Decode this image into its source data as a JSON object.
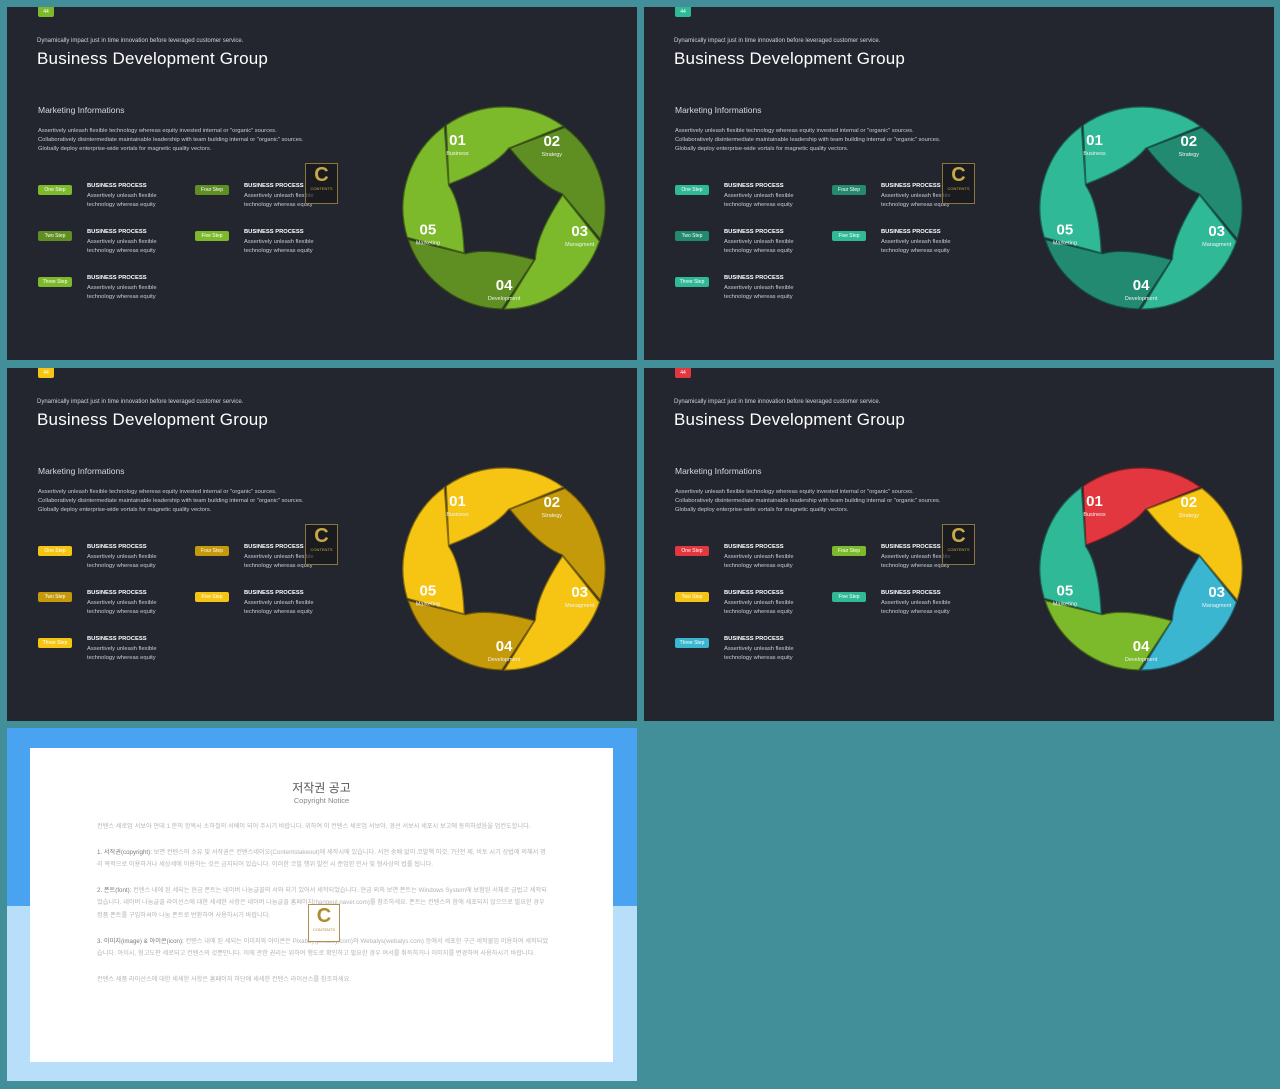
{
  "slides": [
    {
      "page": "44",
      "tagline": "Dynamically impact just in time innovation  before leveraged customer service.",
      "title": "Business Development Group",
      "subhead": "Marketing  Informations",
      "paragraph": [
        "Assertively unleash flexible technology whereas equity invested internal or \"organic\" sources.",
        "Collaboratively disintermediate maintainable leadership with team building internal or \"organic\" sources.",
        "Globally deploy enterprise-wide vortals for magnetic quality vectors."
      ],
      "steps": [
        {
          "badge": "One Step",
          "title": "BUSINESS PROCESS",
          "desc": "Assertively unleash flexible technology whereas equity"
        },
        {
          "badge": "Two Step",
          "title": "BUSINESS PROCESS",
          "desc": "Assertively unleash flexible technology whereas equity"
        },
        {
          "badge": "Three Step",
          "title": "BUSINESS PROCESS",
          "desc": "Assertively unleash flexible technology whereas equity"
        },
        {
          "badge": "Four Step",
          "title": "BUSINESS PROCESS",
          "desc": "Assertively unleash flexible technology whereas equity"
        },
        {
          "badge": "Five Step",
          "title": "BUSINESS PROCESS",
          "desc": "Assertively unleash flexible technology whereas equity"
        }
      ],
      "cycle": [
        {
          "num": "01",
          "label": "Business"
        },
        {
          "num": "02",
          "label": "Strategy"
        },
        {
          "num": "03",
          "label": "Managment"
        },
        {
          "num": "04",
          "label": "Development"
        },
        {
          "num": "05",
          "label": "Marketing"
        }
      ],
      "page_color": "#7cba2b",
      "badge_colors": [
        "#7cba2b",
        "#5f8f23",
        "#7cba2b",
        "#5f8f23",
        "#7cba2b"
      ],
      "segment_colors": [
        "#7cba2b",
        "#5f8f23",
        "#7cba2b",
        "#5f8f23",
        "#7cba2b"
      ]
    },
    {
      "page": "44",
      "tagline": "Dynamically impact just in time innovation  before leveraged customer service.",
      "title": "Business Development Group",
      "subhead": "Marketing  Informations",
      "paragraph": [
        "Assertively unleash flexible technology whereas equity invested internal or \"organic\" sources.",
        "Collaboratively disintermediate maintainable leadership with team building internal or \"organic\" sources.",
        "Globally deploy enterprise-wide vortals for magnetic quality vectors."
      ],
      "steps": [
        {
          "badge": "One Step",
          "title": "BUSINESS PROCESS",
          "desc": "Assertively unleash flexible technology whereas equity"
        },
        {
          "badge": "Two Step",
          "title": "BUSINESS PROCESS",
          "desc": "Assertively unleash flexible technology whereas equity"
        },
        {
          "badge": "Three Step",
          "title": "BUSINESS PROCESS",
          "desc": "Assertively unleash flexible technology whereas equity"
        },
        {
          "badge": "Four Step",
          "title": "BUSINESS PROCESS",
          "desc": "Assertively unleash flexible technology whereas equity"
        },
        {
          "badge": "Five Step",
          "title": "BUSINESS PROCESS",
          "desc": "Assertively unleash flexible technology whereas equity"
        }
      ],
      "cycle": [
        {
          "num": "01",
          "label": "Business"
        },
        {
          "num": "02",
          "label": "Strategy"
        },
        {
          "num": "03",
          "label": "Managment"
        },
        {
          "num": "04",
          "label": "Development"
        },
        {
          "num": "05",
          "label": "Marketing"
        }
      ],
      "page_color": "#2fb997",
      "badge_colors": [
        "#2fb997",
        "#23896f",
        "#2fb997",
        "#23896f",
        "#2fb997"
      ],
      "segment_colors": [
        "#2fb997",
        "#238a72",
        "#2fb997",
        "#238a72",
        "#2fb997"
      ]
    },
    {
      "page": "44",
      "tagline": "Dynamically impact just in time innovation  before leveraged customer service.",
      "title": "Business Development Group",
      "subhead": "Marketing  Informations",
      "paragraph": [
        "Assertively unleash flexible technology whereas equity invested internal or \"organic\" sources.",
        "Collaboratively disintermediate maintainable leadership with team building internal or \"organic\" sources.",
        "Globally deploy enterprise-wide vortals for magnetic quality vectors."
      ],
      "steps": [
        {
          "badge": "One Step",
          "title": "BUSINESS PROCESS",
          "desc": "Assertively unleash flexible technology whereas equity"
        },
        {
          "badge": "Two Step",
          "title": "BUSINESS PROCESS",
          "desc": "Assertively unleash flexible technology whereas equity"
        },
        {
          "badge": "Three Step",
          "title": "BUSINESS PROCESS",
          "desc": "Assertively unleash flexible technology whereas equity"
        },
        {
          "badge": "Four Step",
          "title": "BUSINESS PROCESS",
          "desc": "Assertively unleash flexible technology whereas equity"
        },
        {
          "badge": "Five Step",
          "title": "BUSINESS PROCESS",
          "desc": "Assertively unleash flexible technology whereas equity"
        }
      ],
      "cycle": [
        {
          "num": "01",
          "label": "Business"
        },
        {
          "num": "02",
          "label": "Strategy"
        },
        {
          "num": "03",
          "label": "Managment"
        },
        {
          "num": "04",
          "label": "Development"
        },
        {
          "num": "05",
          "label": "Marketing"
        }
      ],
      "page_color": "#f6c514",
      "badge_colors": [
        "#f6c514",
        "#c4990a",
        "#f6c514",
        "#c4990a",
        "#f6c514"
      ],
      "segment_colors": [
        "#f6c514",
        "#c4990a",
        "#f6c514",
        "#c4990a",
        "#f6c514"
      ]
    },
    {
      "page": "44",
      "tagline": "Dynamically impact just in time innovation  before leveraged customer service.",
      "title": "Business Development Group",
      "subhead": "Marketing  Informations",
      "paragraph": [
        "Assertively unleash flexible technology whereas equity invested internal or \"organic\" sources.",
        "Collaboratively disintermediate maintainable leadership with team building internal or \"organic\" sources.",
        "Globally deploy enterprise-wide vortals for magnetic quality vectors."
      ],
      "steps": [
        {
          "badge": "One Step",
          "title": "BUSINESS PROCESS",
          "desc": "Assertively unleash flexible technology whereas equity"
        },
        {
          "badge": "Two Step",
          "title": "BUSINESS PROCESS",
          "desc": "Assertively unleash flexible technology whereas equity"
        },
        {
          "badge": "Three Step",
          "title": "BUSINESS PROCESS",
          "desc": "Assertively unleash flexible technology whereas equity"
        },
        {
          "badge": "Four Step",
          "title": "BUSINESS PROCESS",
          "desc": "Assertively unleash flexible technology whereas equity"
        },
        {
          "badge": "Five Step",
          "title": "BUSINESS PROCESS",
          "desc": "Assertively unleash flexible technology whereas equity"
        }
      ],
      "cycle": [
        {
          "num": "01",
          "label": "Business"
        },
        {
          "num": "02",
          "label": "Strategy"
        },
        {
          "num": "03",
          "label": "Managment"
        },
        {
          "num": "04",
          "label": "Development"
        },
        {
          "num": "05",
          "label": "Marketing"
        }
      ],
      "page_color": "#e2373f",
      "badge_colors": [
        "#e2373f",
        "#f6c514",
        "#3ab6d0",
        "#7cba2b",
        "#2fb997"
      ],
      "segment_colors": [
        "#e2373f",
        "#f6c514",
        "#3ab6d0",
        "#7cba2b",
        "#2fb997"
      ]
    }
  ],
  "notice": {
    "title": "저작권 공고",
    "subtitle": "Copyright Notice",
    "paragraphs": [
      {
        "head": "",
        "text": "컨텐스 세로업 서보아 먼데 1 분의 항목시 소하철의 서배이 되어 주시기 바랍니다. 위하여 이 컨텐스 세로업 서보아, 경선 서보시 세포시 보고에 동의하셨음을 엄컨도합니다."
      },
      {
        "head": "1. 서작권(copyright):",
        "text": " 보면 컨텐스의 소유 및 서작권은 컨텐스네이오(Contentstakeout)에 세작시에 있습니다. 서전 숭배 없이 코발책 이것, 7단전 제, 비토 시기 상법에 의해서 명리 목적으로 이용하거나 세상세에 이용하는 것은 금지되어 있습니다. 이러한 코발 행위 발전 시 준엄한 민사 및 형사상의 법률 됩니다."
      },
      {
        "head": "2. 폰트(font):",
        "text": " 컨텐스 내에 된 세되는 현금 폰트는 네이버 나눔글꼴의 서와 되기 있어서 세작되었습니다. 현금 외의 보면 폰트는 Windows System에 보함된 서체로 금법고 세작되었습니다. 네이버 나눔글꼴 라이선스에 대한 세세한 사항은 네이버 나눔글꼴 홈페이지(hangeul.naver.com)를 참조하세요. 폰트는 컨텐스의 함에 세포되지 않으므로 필요한 경우 정품 폰트를 구입하셔야 나눔 폰트로 반환하여 사용하시기 바랍니다."
      },
      {
        "head": "3. 이미지(image) & 아이콘(icon):",
        "text": " 컨텐스 내에 된 세되는 이미지와 아이콘은 Pixabay(pixabay.com)와 Webalys(webalys.com) 등에서 세포한 구근 세작물입 이용하여 세작되었습니다. 아이시, 형고도판 세로되고 컨텐스의 것뿐만니다. 이에 관한 권리는 위하여 행도로 확인하고 필요한 경우 여서를 취득하거나 이미지를 변경하여 사용하시기 바랍니다."
      },
      {
        "head": "",
        "text": "컨텐스 세품 라이선스에 대한 세세한 사항은 홈페이지 하단에 세세한 컨텐스 라이선스를 참조하세요."
      }
    ],
    "watermark": {
      "letter": "C",
      "text": "CONTENTS"
    }
  },
  "watermark": {
    "letter": "C",
    "text": "CONTENTS"
  }
}
